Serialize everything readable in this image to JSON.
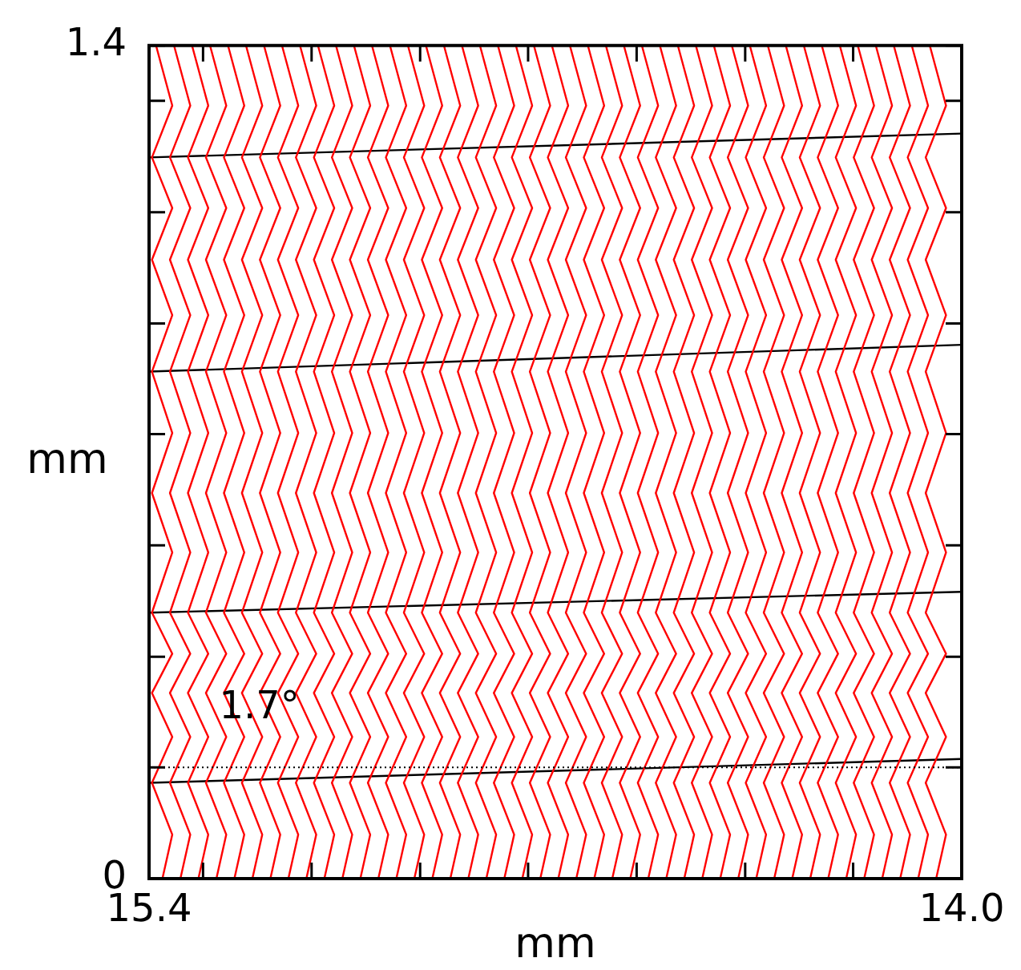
{
  "chart_data": {
    "type": "line",
    "xlabel": "mm",
    "ylabel": "mm",
    "xlim": [
      15.4,
      14.0
    ],
    "ylim": [
      0,
      1.4
    ],
    "marker": "none",
    "xticks": [
      15.4,
      {
        "value": 15.307,
        "label": null
      },
      {
        "value": 15.12,
        "label": null
      },
      {
        "value": 14.933,
        "label": null
      },
      {
        "value": 14.747,
        "label": null
      },
      {
        "value": 14.56,
        "label": null
      },
      {
        "value": 14.373,
        "label": null
      },
      {
        "value": 14.187,
        "label": null
      },
      {
        "value": 14,
        "label": "14.0"
      }
    ],
    "yticks": [
      0,
      {
        "value": 0.187,
        "label": null
      },
      {
        "value": 0.373,
        "label": null
      },
      {
        "value": 0.56,
        "label": null
      },
      {
        "value": 0.747,
        "label": null
      },
      {
        "value": 0.933,
        "label": null
      },
      {
        "value": 1.12,
        "label": null
      },
      {
        "value": 1.307,
        "label": null
      },
      1.4
    ],
    "annotations": [
      {
        "text": "1.7°",
        "x": 15.21,
        "y": 0.286
      }
    ],
    "ref_lines": [
      {
        "axis": "y",
        "value": 0.187,
        "color": "#000000",
        "line_style": "dotted"
      }
    ],
    "series": [
      {
        "color": "#ff0000",
        "x": [
          15.388,
          15.36,
          15.395,
          15.36,
          15.395,
          15.36,
          15.395,
          15.36,
          15.395,
          15.36,
          15.395,
          15.36,
          15.395,
          15.36,
          15.395,
          15.36,
          15.377
        ],
        "values": [
          1.4,
          1.299,
          1.212,
          1.127,
          1.04,
          0.947,
          0.852,
          0.749,
          0.648,
          0.548,
          0.447,
          0.378,
          0.312,
          0.238,
          0.161,
          0.074,
          0
        ]
      },
      {
        "color": "#ff0000",
        "x": [
          15.357,
          15.329,
          15.364,
          15.329,
          15.364,
          15.329,
          15.364,
          15.329,
          15.364,
          15.329,
          15.364,
          15.329,
          15.364,
          15.329,
          15.364,
          15.329,
          15.346
        ],
        "values": [
          1.4,
          1.299,
          1.212,
          1.127,
          1.04,
          0.947,
          0.852,
          0.749,
          0.648,
          0.548,
          0.447,
          0.378,
          0.312,
          0.238,
          0.161,
          0.074,
          0
        ]
      },
      {
        "color": "#ff0000",
        "x": [
          15.326,
          15.298,
          15.333,
          15.298,
          15.333,
          15.298,
          15.333,
          15.298,
          15.333,
          15.298,
          15.333,
          15.298,
          15.333,
          15.298,
          15.333,
          15.298,
          15.315
        ],
        "values": [
          1.4,
          1.299,
          1.212,
          1.127,
          1.04,
          0.947,
          0.852,
          0.749,
          0.648,
          0.548,
          0.447,
          0.378,
          0.312,
          0.238,
          0.161,
          0.074,
          0
        ]
      },
      {
        "color": "#ff0000",
        "x": [
          15.295,
          15.267,
          15.302,
          15.267,
          15.302,
          15.267,
          15.302,
          15.267,
          15.302,
          15.267,
          15.302,
          15.267,
          15.302,
          15.267,
          15.302,
          15.267,
          15.284
        ],
        "values": [
          1.4,
          1.299,
          1.212,
          1.127,
          1.04,
          0.947,
          0.852,
          0.749,
          0.648,
          0.548,
          0.447,
          0.378,
          0.312,
          0.238,
          0.161,
          0.074,
          0
        ]
      },
      {
        "color": "#ff0000",
        "x": [
          15.264,
          15.236,
          15.271,
          15.236,
          15.271,
          15.236,
          15.271,
          15.236,
          15.271,
          15.236,
          15.271,
          15.236,
          15.271,
          15.236,
          15.271,
          15.236,
          15.253
        ],
        "values": [
          1.4,
          1.299,
          1.212,
          1.127,
          1.04,
          0.947,
          0.852,
          0.749,
          0.648,
          0.548,
          0.447,
          0.378,
          0.312,
          0.238,
          0.161,
          0.074,
          0
        ]
      },
      {
        "color": "#ff0000",
        "x": [
          15.233,
          15.205,
          15.24,
          15.205,
          15.24,
          15.205,
          15.24,
          15.205,
          15.24,
          15.205,
          15.24,
          15.205,
          15.24,
          15.205,
          15.24,
          15.205,
          15.222
        ],
        "values": [
          1.4,
          1.299,
          1.212,
          1.127,
          1.04,
          0.947,
          0.852,
          0.749,
          0.648,
          0.548,
          0.447,
          0.378,
          0.312,
          0.238,
          0.161,
          0.074,
          0
        ]
      },
      {
        "color": "#ff0000",
        "x": [
          15.202,
          15.174,
          15.209,
          15.174,
          15.209,
          15.174,
          15.209,
          15.174,
          15.209,
          15.174,
          15.209,
          15.174,
          15.209,
          15.174,
          15.209,
          15.174,
          15.191
        ],
        "values": [
          1.4,
          1.299,
          1.212,
          1.127,
          1.04,
          0.947,
          0.852,
          0.749,
          0.648,
          0.548,
          0.447,
          0.378,
          0.312,
          0.238,
          0.161,
          0.074,
          0
        ]
      },
      {
        "color": "#ff0000",
        "x": [
          15.171,
          15.143,
          15.178,
          15.143,
          15.178,
          15.143,
          15.178,
          15.143,
          15.178,
          15.143,
          15.178,
          15.143,
          15.178,
          15.143,
          15.178,
          15.143,
          15.16
        ],
        "values": [
          1.4,
          1.299,
          1.212,
          1.127,
          1.04,
          0.947,
          0.852,
          0.749,
          0.648,
          0.548,
          0.447,
          0.378,
          0.312,
          0.238,
          0.161,
          0.074,
          0
        ]
      },
      {
        "color": "#ff0000",
        "x": [
          15.14,
          15.112,
          15.147,
          15.112,
          15.147,
          15.112,
          15.147,
          15.112,
          15.147,
          15.112,
          15.147,
          15.112,
          15.147,
          15.112,
          15.147,
          15.112,
          15.129
        ],
        "values": [
          1.4,
          1.299,
          1.212,
          1.127,
          1.04,
          0.947,
          0.852,
          0.749,
          0.648,
          0.548,
          0.447,
          0.378,
          0.312,
          0.238,
          0.161,
          0.074,
          0
        ]
      },
      {
        "color": "#ff0000",
        "x": [
          15.109,
          15.081,
          15.116,
          15.081,
          15.116,
          15.081,
          15.116,
          15.081,
          15.116,
          15.081,
          15.116,
          15.081,
          15.116,
          15.081,
          15.116,
          15.081,
          15.098
        ],
        "values": [
          1.4,
          1.299,
          1.212,
          1.127,
          1.04,
          0.947,
          0.852,
          0.749,
          0.648,
          0.548,
          0.447,
          0.378,
          0.312,
          0.238,
          0.161,
          0.074,
          0
        ]
      },
      {
        "color": "#ff0000",
        "x": [
          15.078,
          15.05,
          15.085,
          15.05,
          15.085,
          15.05,
          15.085,
          15.05,
          15.085,
          15.05,
          15.085,
          15.05,
          15.085,
          15.05,
          15.085,
          15.05,
          15.067
        ],
        "values": [
          1.4,
          1.299,
          1.212,
          1.127,
          1.04,
          0.947,
          0.852,
          0.749,
          0.648,
          0.548,
          0.447,
          0.378,
          0.312,
          0.238,
          0.161,
          0.074,
          0
        ]
      },
      {
        "color": "#ff0000",
        "x": [
          15.047,
          15.019,
          15.054,
          15.019,
          15.054,
          15.019,
          15.054,
          15.019,
          15.054,
          15.019,
          15.054,
          15.019,
          15.054,
          15.019,
          15.054,
          15.019,
          15.036
        ],
        "values": [
          1.4,
          1.299,
          1.212,
          1.127,
          1.04,
          0.947,
          0.852,
          0.749,
          0.648,
          0.548,
          0.447,
          0.378,
          0.312,
          0.238,
          0.161,
          0.074,
          0
        ]
      },
      {
        "color": "#ff0000",
        "x": [
          15.016,
          14.988,
          15.023,
          14.988,
          15.023,
          14.988,
          15.023,
          14.988,
          15.023,
          14.988,
          15.023,
          14.988,
          15.023,
          14.988,
          15.023,
          14.988,
          15.005
        ],
        "values": [
          1.4,
          1.299,
          1.212,
          1.127,
          1.04,
          0.947,
          0.852,
          0.749,
          0.648,
          0.548,
          0.447,
          0.378,
          0.312,
          0.238,
          0.161,
          0.074,
          0
        ]
      },
      {
        "color": "#ff0000",
        "x": [
          14.985,
          14.957,
          14.992,
          14.957,
          14.992,
          14.957,
          14.992,
          14.957,
          14.992,
          14.957,
          14.992,
          14.957,
          14.992,
          14.957,
          14.992,
          14.957,
          14.974
        ],
        "values": [
          1.4,
          1.299,
          1.212,
          1.127,
          1.04,
          0.947,
          0.852,
          0.749,
          0.648,
          0.548,
          0.447,
          0.378,
          0.312,
          0.238,
          0.161,
          0.074,
          0
        ]
      },
      {
        "color": "#ff0000",
        "x": [
          14.954,
          14.926,
          14.961,
          14.926,
          14.961,
          14.926,
          14.961,
          14.926,
          14.961,
          14.926,
          14.961,
          14.926,
          14.961,
          14.926,
          14.961,
          14.926,
          14.943
        ],
        "values": [
          1.4,
          1.299,
          1.212,
          1.127,
          1.04,
          0.947,
          0.852,
          0.749,
          0.648,
          0.548,
          0.447,
          0.378,
          0.312,
          0.238,
          0.161,
          0.074,
          0
        ]
      },
      {
        "color": "#ff0000",
        "x": [
          14.923,
          14.895,
          14.93,
          14.895,
          14.93,
          14.895,
          14.93,
          14.895,
          14.93,
          14.895,
          14.93,
          14.895,
          14.93,
          14.895,
          14.93,
          14.895,
          14.912
        ],
        "values": [
          1.4,
          1.299,
          1.212,
          1.127,
          1.04,
          0.947,
          0.852,
          0.749,
          0.648,
          0.548,
          0.447,
          0.378,
          0.312,
          0.238,
          0.161,
          0.074,
          0
        ]
      },
      {
        "color": "#ff0000",
        "x": [
          14.892,
          14.864,
          14.899,
          14.864,
          14.899,
          14.864,
          14.899,
          14.864,
          14.899,
          14.864,
          14.899,
          14.864,
          14.899,
          14.864,
          14.899,
          14.864,
          14.881
        ],
        "values": [
          1.4,
          1.299,
          1.212,
          1.127,
          1.04,
          0.947,
          0.852,
          0.749,
          0.648,
          0.548,
          0.447,
          0.378,
          0.312,
          0.238,
          0.161,
          0.074,
          0
        ]
      },
      {
        "color": "#ff0000",
        "x": [
          14.861,
          14.833,
          14.868,
          14.833,
          14.868,
          14.833,
          14.868,
          14.833,
          14.868,
          14.833,
          14.868,
          14.833,
          14.868,
          14.833,
          14.868,
          14.833,
          14.85
        ],
        "values": [
          1.4,
          1.299,
          1.212,
          1.127,
          1.04,
          0.947,
          0.852,
          0.749,
          0.648,
          0.548,
          0.447,
          0.378,
          0.312,
          0.238,
          0.161,
          0.074,
          0
        ]
      },
      {
        "color": "#ff0000",
        "x": [
          14.83,
          14.802,
          14.837,
          14.802,
          14.837,
          14.802,
          14.837,
          14.802,
          14.837,
          14.802,
          14.837,
          14.802,
          14.837,
          14.802,
          14.837,
          14.802,
          14.819
        ],
        "values": [
          1.4,
          1.299,
          1.212,
          1.127,
          1.04,
          0.947,
          0.852,
          0.749,
          0.648,
          0.548,
          0.447,
          0.378,
          0.312,
          0.238,
          0.161,
          0.074,
          0
        ]
      },
      {
        "color": "#ff0000",
        "x": [
          14.799,
          14.771,
          14.806,
          14.771,
          14.806,
          14.771,
          14.806,
          14.771,
          14.806,
          14.771,
          14.806,
          14.771,
          14.806,
          14.771,
          14.806,
          14.771,
          14.788
        ],
        "values": [
          1.4,
          1.299,
          1.212,
          1.127,
          1.04,
          0.947,
          0.852,
          0.749,
          0.648,
          0.548,
          0.447,
          0.378,
          0.312,
          0.238,
          0.161,
          0.074,
          0
        ]
      },
      {
        "color": "#ff0000",
        "x": [
          14.768,
          14.74,
          14.775,
          14.74,
          14.775,
          14.74,
          14.775,
          14.74,
          14.775,
          14.74,
          14.775,
          14.74,
          14.775,
          14.74,
          14.775,
          14.74,
          14.757
        ],
        "values": [
          1.4,
          1.299,
          1.212,
          1.127,
          1.04,
          0.947,
          0.852,
          0.749,
          0.648,
          0.548,
          0.447,
          0.378,
          0.312,
          0.238,
          0.161,
          0.074,
          0
        ]
      },
      {
        "color": "#ff0000",
        "x": [
          14.737,
          14.709,
          14.744,
          14.709,
          14.744,
          14.709,
          14.744,
          14.709,
          14.744,
          14.709,
          14.744,
          14.709,
          14.744,
          14.709,
          14.744,
          14.709,
          14.726
        ],
        "values": [
          1.4,
          1.299,
          1.212,
          1.127,
          1.04,
          0.947,
          0.852,
          0.749,
          0.648,
          0.548,
          0.447,
          0.378,
          0.312,
          0.238,
          0.161,
          0.074,
          0
        ]
      },
      {
        "color": "#ff0000",
        "x": [
          14.706,
          14.678,
          14.713,
          14.678,
          14.713,
          14.678,
          14.713,
          14.678,
          14.713,
          14.678,
          14.713,
          14.678,
          14.713,
          14.678,
          14.713,
          14.678,
          14.695
        ],
        "values": [
          1.4,
          1.299,
          1.212,
          1.127,
          1.04,
          0.947,
          0.852,
          0.749,
          0.648,
          0.548,
          0.447,
          0.378,
          0.312,
          0.238,
          0.161,
          0.074,
          0
        ]
      },
      {
        "color": "#ff0000",
        "x": [
          14.675,
          14.647,
          14.682,
          14.647,
          14.682,
          14.647,
          14.682,
          14.647,
          14.682,
          14.647,
          14.682,
          14.647,
          14.682,
          14.647,
          14.682,
          14.647,
          14.664
        ],
        "values": [
          1.4,
          1.299,
          1.212,
          1.127,
          1.04,
          0.947,
          0.852,
          0.749,
          0.648,
          0.548,
          0.447,
          0.378,
          0.312,
          0.238,
          0.161,
          0.074,
          0
        ]
      },
      {
        "color": "#ff0000",
        "x": [
          14.644,
          14.616,
          14.651,
          14.616,
          14.651,
          14.616,
          14.651,
          14.616,
          14.651,
          14.616,
          14.651,
          14.616,
          14.651,
          14.616,
          14.651,
          14.616,
          14.633
        ],
        "values": [
          1.4,
          1.299,
          1.212,
          1.127,
          1.04,
          0.947,
          0.852,
          0.749,
          0.648,
          0.548,
          0.447,
          0.378,
          0.312,
          0.238,
          0.161,
          0.074,
          0
        ]
      },
      {
        "color": "#ff0000",
        "x": [
          14.613,
          14.585,
          14.62,
          14.585,
          14.62,
          14.585,
          14.62,
          14.585,
          14.62,
          14.585,
          14.62,
          14.585,
          14.62,
          14.585,
          14.62,
          14.585,
          14.602
        ],
        "values": [
          1.4,
          1.299,
          1.212,
          1.127,
          1.04,
          0.947,
          0.852,
          0.749,
          0.648,
          0.548,
          0.447,
          0.378,
          0.312,
          0.238,
          0.161,
          0.074,
          0
        ]
      },
      {
        "color": "#ff0000",
        "x": [
          14.582,
          14.554,
          14.589,
          14.554,
          14.589,
          14.554,
          14.589,
          14.554,
          14.589,
          14.554,
          14.589,
          14.554,
          14.589,
          14.554,
          14.589,
          14.554,
          14.571
        ],
        "values": [
          1.4,
          1.299,
          1.212,
          1.127,
          1.04,
          0.947,
          0.852,
          0.749,
          0.648,
          0.548,
          0.447,
          0.378,
          0.312,
          0.238,
          0.161,
          0.074,
          0
        ]
      },
      {
        "color": "#ff0000",
        "x": [
          14.551,
          14.523,
          14.558,
          14.523,
          14.558,
          14.523,
          14.558,
          14.523,
          14.558,
          14.523,
          14.558,
          14.523,
          14.558,
          14.523,
          14.558,
          14.523,
          14.54
        ],
        "values": [
          1.4,
          1.299,
          1.212,
          1.127,
          1.04,
          0.947,
          0.852,
          0.749,
          0.648,
          0.548,
          0.447,
          0.378,
          0.312,
          0.238,
          0.161,
          0.074,
          0
        ]
      },
      {
        "color": "#ff0000",
        "x": [
          14.52,
          14.492,
          14.527,
          14.492,
          14.527,
          14.492,
          14.527,
          14.492,
          14.527,
          14.492,
          14.527,
          14.492,
          14.527,
          14.492,
          14.527,
          14.492,
          14.509
        ],
        "values": [
          1.4,
          1.299,
          1.212,
          1.127,
          1.04,
          0.947,
          0.852,
          0.749,
          0.648,
          0.548,
          0.447,
          0.378,
          0.312,
          0.238,
          0.161,
          0.074,
          0
        ]
      },
      {
        "color": "#ff0000",
        "x": [
          14.489,
          14.461,
          14.496,
          14.461,
          14.496,
          14.461,
          14.496,
          14.461,
          14.496,
          14.461,
          14.496,
          14.461,
          14.496,
          14.461,
          14.496,
          14.461,
          14.478
        ],
        "values": [
          1.4,
          1.299,
          1.212,
          1.127,
          1.04,
          0.947,
          0.852,
          0.749,
          0.648,
          0.548,
          0.447,
          0.378,
          0.312,
          0.238,
          0.161,
          0.074,
          0
        ]
      },
      {
        "color": "#ff0000",
        "x": [
          14.458,
          14.43,
          14.465,
          14.43,
          14.465,
          14.43,
          14.465,
          14.43,
          14.465,
          14.43,
          14.465,
          14.43,
          14.465,
          14.43,
          14.465,
          14.43,
          14.447
        ],
        "values": [
          1.4,
          1.299,
          1.212,
          1.127,
          1.04,
          0.947,
          0.852,
          0.749,
          0.648,
          0.548,
          0.447,
          0.378,
          0.312,
          0.238,
          0.161,
          0.074,
          0
        ]
      },
      {
        "color": "#ff0000",
        "x": [
          14.427,
          14.399,
          14.434,
          14.399,
          14.434,
          14.399,
          14.434,
          14.399,
          14.434,
          14.399,
          14.434,
          14.399,
          14.434,
          14.399,
          14.434,
          14.399,
          14.416
        ],
        "values": [
          1.4,
          1.299,
          1.212,
          1.127,
          1.04,
          0.947,
          0.852,
          0.749,
          0.648,
          0.548,
          0.447,
          0.378,
          0.312,
          0.238,
          0.161,
          0.074,
          0
        ]
      },
      {
        "color": "#ff0000",
        "x": [
          14.396,
          14.368,
          14.403,
          14.368,
          14.403,
          14.368,
          14.403,
          14.368,
          14.403,
          14.368,
          14.403,
          14.368,
          14.403,
          14.368,
          14.403,
          14.368,
          14.385
        ],
        "values": [
          1.4,
          1.299,
          1.212,
          1.127,
          1.04,
          0.947,
          0.852,
          0.749,
          0.648,
          0.548,
          0.447,
          0.378,
          0.312,
          0.238,
          0.161,
          0.074,
          0
        ]
      },
      {
        "color": "#ff0000",
        "x": [
          14.365,
          14.337,
          14.372,
          14.337,
          14.372,
          14.337,
          14.372,
          14.337,
          14.372,
          14.337,
          14.372,
          14.337,
          14.372,
          14.337,
          14.372,
          14.337,
          14.354
        ],
        "values": [
          1.4,
          1.299,
          1.212,
          1.127,
          1.04,
          0.947,
          0.852,
          0.749,
          0.648,
          0.548,
          0.447,
          0.378,
          0.312,
          0.238,
          0.161,
          0.074,
          0
        ]
      },
      {
        "color": "#ff0000",
        "x": [
          14.334,
          14.306,
          14.341,
          14.306,
          14.341,
          14.306,
          14.341,
          14.306,
          14.341,
          14.306,
          14.341,
          14.306,
          14.341,
          14.306,
          14.341,
          14.306,
          14.323
        ],
        "values": [
          1.4,
          1.299,
          1.212,
          1.127,
          1.04,
          0.947,
          0.852,
          0.749,
          0.648,
          0.548,
          0.447,
          0.378,
          0.312,
          0.238,
          0.161,
          0.074,
          0
        ]
      },
      {
        "color": "#ff0000",
        "x": [
          14.303,
          14.275,
          14.31,
          14.275,
          14.31,
          14.275,
          14.31,
          14.275,
          14.31,
          14.275,
          14.31,
          14.275,
          14.31,
          14.275,
          14.31,
          14.275,
          14.292
        ],
        "values": [
          1.4,
          1.299,
          1.212,
          1.127,
          1.04,
          0.947,
          0.852,
          0.749,
          0.648,
          0.548,
          0.447,
          0.378,
          0.312,
          0.238,
          0.161,
          0.074,
          0
        ]
      },
      {
        "color": "#ff0000",
        "x": [
          14.272,
          14.244,
          14.279,
          14.244,
          14.279,
          14.244,
          14.279,
          14.244,
          14.279,
          14.244,
          14.279,
          14.244,
          14.279,
          14.244,
          14.279,
          14.244,
          14.261
        ],
        "values": [
          1.4,
          1.299,
          1.212,
          1.127,
          1.04,
          0.947,
          0.852,
          0.749,
          0.648,
          0.548,
          0.447,
          0.378,
          0.312,
          0.238,
          0.161,
          0.074,
          0
        ]
      },
      {
        "color": "#ff0000",
        "x": [
          14.241,
          14.213,
          14.248,
          14.213,
          14.248,
          14.213,
          14.248,
          14.213,
          14.248,
          14.213,
          14.248,
          14.213,
          14.248,
          14.213,
          14.248,
          14.213,
          14.23
        ],
        "values": [
          1.4,
          1.299,
          1.212,
          1.127,
          1.04,
          0.947,
          0.852,
          0.749,
          0.648,
          0.548,
          0.447,
          0.378,
          0.312,
          0.238,
          0.161,
          0.074,
          0
        ]
      },
      {
        "color": "#ff0000",
        "x": [
          14.21,
          14.182,
          14.217,
          14.182,
          14.217,
          14.182,
          14.217,
          14.182,
          14.217,
          14.182,
          14.217,
          14.182,
          14.217,
          14.182,
          14.217,
          14.182,
          14.199
        ],
        "values": [
          1.4,
          1.299,
          1.212,
          1.127,
          1.04,
          0.947,
          0.852,
          0.749,
          0.648,
          0.548,
          0.447,
          0.378,
          0.312,
          0.238,
          0.161,
          0.074,
          0
        ]
      },
      {
        "color": "#ff0000",
        "x": [
          14.179,
          14.151,
          14.186,
          14.151,
          14.186,
          14.151,
          14.186,
          14.151,
          14.186,
          14.151,
          14.186,
          14.151,
          14.186,
          14.151,
          14.186,
          14.151,
          14.168
        ],
        "values": [
          1.4,
          1.299,
          1.212,
          1.127,
          1.04,
          0.947,
          0.852,
          0.749,
          0.648,
          0.548,
          0.447,
          0.378,
          0.312,
          0.238,
          0.161,
          0.074,
          0
        ]
      },
      {
        "color": "#ff0000",
        "x": [
          14.148,
          14.12,
          14.155,
          14.12,
          14.155,
          14.12,
          14.155,
          14.12,
          14.155,
          14.12,
          14.155,
          14.12,
          14.155,
          14.12,
          14.155,
          14.12,
          14.137
        ],
        "values": [
          1.4,
          1.299,
          1.212,
          1.127,
          1.04,
          0.947,
          0.852,
          0.749,
          0.648,
          0.548,
          0.447,
          0.378,
          0.312,
          0.238,
          0.161,
          0.074,
          0
        ]
      },
      {
        "color": "#ff0000",
        "x": [
          14.117,
          14.089,
          14.124,
          14.089,
          14.124,
          14.089,
          14.124,
          14.089,
          14.124,
          14.089,
          14.124,
          14.089,
          14.124,
          14.089,
          14.124,
          14.089,
          14.106
        ],
        "values": [
          1.4,
          1.299,
          1.212,
          1.127,
          1.04,
          0.947,
          0.852,
          0.749,
          0.648,
          0.548,
          0.447,
          0.378,
          0.312,
          0.238,
          0.161,
          0.074,
          0
        ]
      },
      {
        "color": "#ff0000",
        "x": [
          14.086,
          14.058,
          14.093,
          14.058,
          14.093,
          14.058,
          14.093,
          14.058,
          14.093,
          14.058,
          14.093,
          14.058,
          14.093,
          14.058,
          14.093,
          14.058,
          14.075
        ],
        "values": [
          1.4,
          1.299,
          1.212,
          1.127,
          1.04,
          0.947,
          0.852,
          0.749,
          0.648,
          0.548,
          0.447,
          0.378,
          0.312,
          0.238,
          0.161,
          0.074,
          0
        ]
      },
      {
        "color": "#ff0000",
        "x": [
          14.055,
          14.027,
          14.062,
          14.027,
          14.062,
          14.027,
          14.062,
          14.027,
          14.062,
          14.027,
          14.062,
          14.027,
          14.062,
          14.027,
          14.062,
          14.027,
          14.044
        ],
        "values": [
          1.4,
          1.299,
          1.212,
          1.127,
          1.04,
          0.947,
          0.852,
          0.749,
          0.648,
          0.548,
          0.447,
          0.378,
          0.312,
          0.238,
          0.161,
          0.074,
          0
        ]
      },
      {
        "color": "#000000",
        "x": [
          15.4,
          14.0
        ],
        "values": [
          1.212,
          1.252
        ]
      },
      {
        "color": "#000000",
        "x": [
          15.4,
          14.0
        ],
        "values": [
          0.852,
          0.897
        ]
      },
      {
        "color": "#000000",
        "x": [
          15.4,
          14.0
        ],
        "values": [
          0.447,
          0.482
        ]
      },
      {
        "color": "#000000",
        "x": [
          15.4,
          14.0
        ],
        "values": [
          0.161,
          0.201
        ]
      }
    ]
  }
}
